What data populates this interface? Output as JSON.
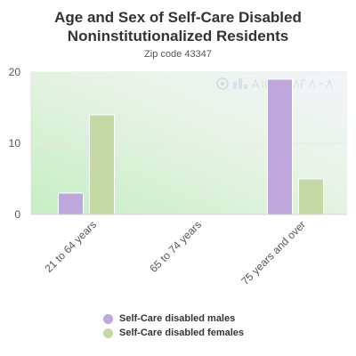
{
  "header": {
    "title_line1": "Age and Sex of Self-Care Disabled",
    "title_line2": "Noninstitutionalized Residents",
    "subtitle": "Zip code 43347"
  },
  "watermark": "City-Data.com",
  "colors": {
    "males": "#bda7db",
    "females": "#c4d9a6",
    "axis_text": "#555555"
  },
  "chart_data": {
    "type": "bar",
    "title": "Age and Sex of Self-Care Disabled Noninstitutionalized Residents",
    "subtitle": "Zip code 43347",
    "categories": [
      "21 to 64 years",
      "65 to 74 years",
      "75 years and over"
    ],
    "series": [
      {
        "name": "Self-Care disabled males",
        "values": [
          3,
          0,
          19
        ]
      },
      {
        "name": "Self-Care disabled females",
        "values": [
          14,
          0,
          5
        ]
      }
    ],
    "ylim": [
      0,
      20
    ],
    "yticks": [
      0,
      10,
      20
    ],
    "xlabel": "",
    "ylabel": "",
    "grid": true,
    "legend": "bottom"
  }
}
